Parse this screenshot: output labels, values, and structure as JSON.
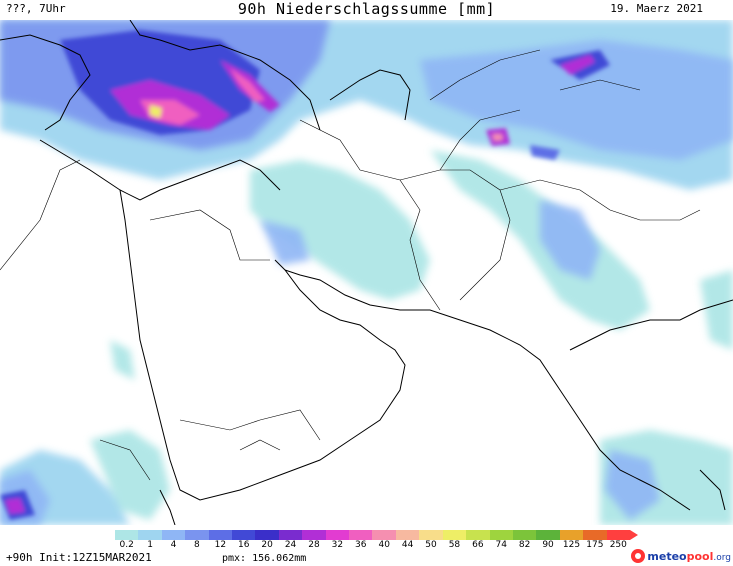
{
  "header": {
    "left": "???, 7Uhr",
    "title": "90h Niederschlagssumme [mm]",
    "date": "19. Maerz 2021"
  },
  "legend": {
    "labels": [
      "0.2",
      "1",
      "4",
      "8",
      "12",
      "16",
      "20",
      "24",
      "28",
      "32",
      "36",
      "40",
      "44",
      "50",
      "58",
      "66",
      "74",
      "82",
      "90",
      "125",
      "175",
      "250"
    ],
    "colors": [
      "#aee6e6",
      "#9fd5f0",
      "#8fb6f5",
      "#7a94ef",
      "#5d6ee6",
      "#4149d6",
      "#3a2fc9",
      "#7a2ccf",
      "#b12fd6",
      "#e23cd1",
      "#f05fc0",
      "#f58fb0",
      "#f7b9a0",
      "#f8dd8a",
      "#eeee66",
      "#c8e24e",
      "#9ed43e",
      "#7cc43a",
      "#5cb33a",
      "#e8a12a",
      "#e86a28",
      "#ff3f3f"
    ]
  },
  "footer": {
    "left": "+90h Init:12Z15MAR2021",
    "pmx": "pmx: 156.062mm",
    "logo_part1": "meteo",
    "logo_part2": "pool",
    "logo_part3": ".org"
  }
}
